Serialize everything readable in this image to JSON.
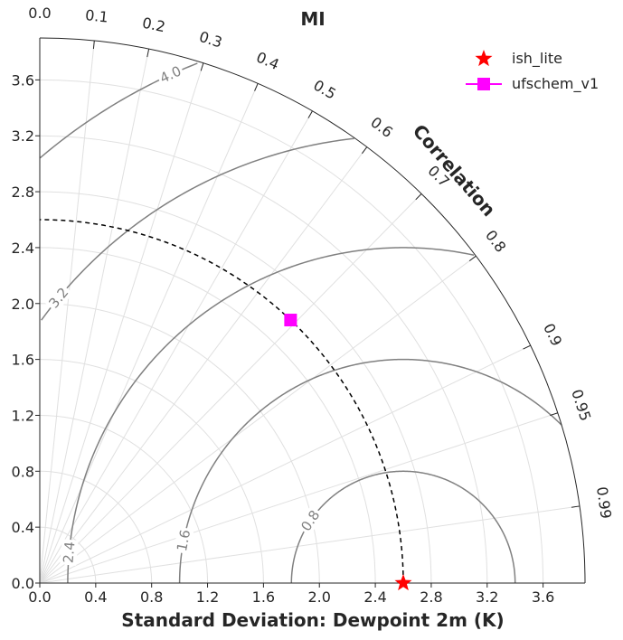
{
  "chart_data": {
    "type": "taylor",
    "title": "MI",
    "xlabel": "Standard Deviation: Dewpoint 2m (K)",
    "correlation_label": "Correlation",
    "std_max": 3.9,
    "std_ticks": [
      "0.0",
      "0.4",
      "0.8",
      "1.2",
      "1.6",
      "2.0",
      "2.4",
      "2.8",
      "3.2",
      "3.6"
    ],
    "correlation_ticks": [
      "0.0",
      "0.1",
      "0.2",
      "0.3",
      "0.4",
      "0.5",
      "0.6",
      "0.7",
      "0.8",
      "0.9",
      "0.95",
      "0.99"
    ],
    "rms_contours": [
      0.8,
      1.6,
      2.4,
      3.2,
      4.0
    ],
    "rms_contour_labels": [
      "0.8",
      "1.6",
      "2.4",
      "3.2",
      "4.0"
    ],
    "reference_std": 2.6,
    "series": [
      {
        "name": "ish_lite",
        "marker": "star",
        "color": "#ff0000",
        "std": 2.6,
        "correlation": 1.0
      },
      {
        "name": "ufschem_v1",
        "marker": "square",
        "color": "#ff00ff",
        "std": 2.6,
        "correlation": 0.69
      }
    ],
    "grid": true,
    "legend_position": "top-right"
  }
}
